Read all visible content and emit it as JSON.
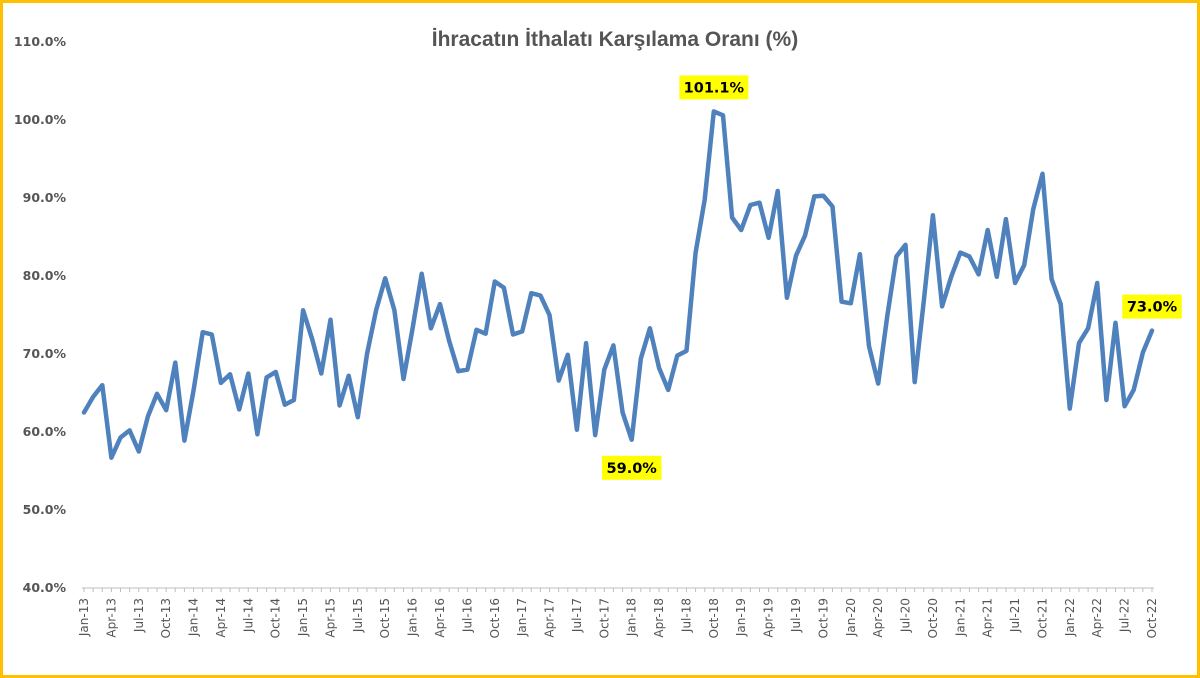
{
  "chart_data": {
    "type": "line",
    "title": "İhracatın İthalatı Karşılama Oranı (%)",
    "xlabel": "",
    "ylabel": "",
    "ylim": [
      40,
      110
    ],
    "yticks": [
      "40.0%",
      "50.0%",
      "60.0%",
      "70.0%",
      "80.0%",
      "90.0%",
      "100.0%",
      "110.0%"
    ],
    "xtick_labels": [
      "Jan-13",
      "Apr-13",
      "Jul-13",
      "Oct-13",
      "Jan-14",
      "Apr-14",
      "Jul-14",
      "Oct-14",
      "Jan-15",
      "Apr-15",
      "Jul-15",
      "Oct-15",
      "Jan-16",
      "Apr-16",
      "Jul-16",
      "Oct-16",
      "Jan-17",
      "Apr-17",
      "Jul-17",
      "Oct-17",
      "Jan-18",
      "Apr-18",
      "Jul-18",
      "Oct-18",
      "Jan-19",
      "Apr-19",
      "Jul-19",
      "Oct-19",
      "Jan-20",
      "Apr-20",
      "Jul-20",
      "Oct-20",
      "Jan-21",
      "Apr-21",
      "Jul-21",
      "Oct-21",
      "Jan-22",
      "Apr-22",
      "Jul-22",
      "Oct-22"
    ],
    "x_start": "Jan-13",
    "x_end": "Oct-22",
    "grid": false,
    "legend": "none",
    "series": [
      {
        "color": "#4F81BD",
        "values": [
          62.5,
          64.5,
          66.0,
          56.7,
          59.3,
          60.2,
          57.5,
          62.0,
          64.9,
          62.8,
          68.9,
          58.9,
          65.3,
          72.8,
          72.5,
          66.3,
          67.4,
          62.9,
          67.5,
          59.7,
          67.0,
          67.7,
          63.5,
          64.1,
          75.6,
          71.9,
          67.5,
          74.4,
          63.4,
          67.2,
          61.9,
          70.0,
          75.6,
          79.7,
          75.6,
          66.8,
          73.3,
          80.3,
          73.3,
          76.4,
          71.7,
          67.8,
          68.0,
          73.1,
          72.6,
          79.3,
          78.5,
          72.5,
          72.9,
          77.8,
          77.5,
          75.0,
          66.6,
          69.9,
          60.3,
          71.4,
          59.6,
          68.0,
          71.1,
          62.5,
          59.0,
          69.4,
          73.3,
          68.2,
          65.4,
          69.8,
          70.4,
          83.0,
          89.8,
          101.1,
          100.6,
          87.5,
          85.9,
          89.1,
          89.4,
          84.9,
          90.9,
          77.2,
          82.6,
          85.2,
          90.2,
          90.3,
          88.9,
          76.7,
          76.5,
          82.8,
          71.0,
          66.2,
          74.9,
          82.5,
          84.0,
          66.4,
          76.8,
          87.8,
          76.1,
          79.9,
          83.0,
          82.5,
          80.2,
          85.9,
          79.9,
          87.3,
          79.1,
          81.4,
          88.6,
          93.1,
          79.6,
          76.4,
          63.0,
          71.4,
          73.3,
          79.1,
          64.1,
          74.0,
          63.3,
          65.4,
          70.2,
          73.0
        ]
      }
    ],
    "annotations": [
      {
        "text": "101.1%",
        "index": 69,
        "value": 101.1,
        "position": "above",
        "background": "#FFFF00"
      },
      {
        "text": "59.0%",
        "index": 60,
        "value": 59.0,
        "position": "below",
        "background": "#FFFF00"
      },
      {
        "text": "73.0%",
        "index": 117,
        "value": 73.0,
        "position": "above",
        "background": "#FFFF00"
      }
    ]
  }
}
